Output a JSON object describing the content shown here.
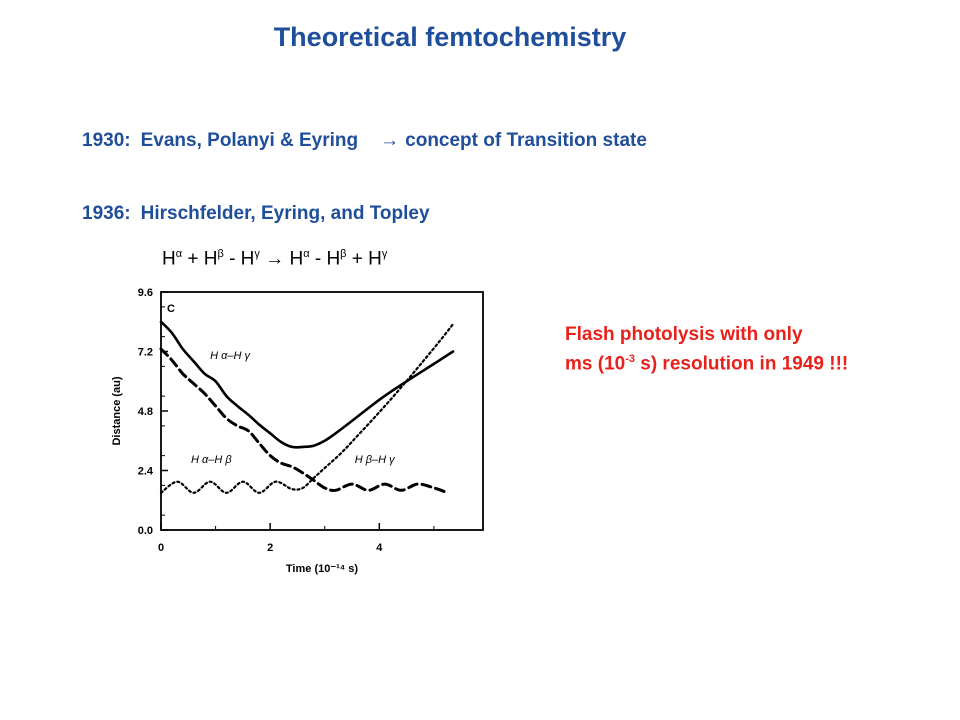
{
  "title": "Theoretical femtochemistry",
  "line1": {
    "year": "1930:",
    "text": "Evans, Polanyi & Eyring",
    "arrow": "→",
    "text2": "concept of Transition state"
  },
  "line2": {
    "year": "1936:",
    "text": "Hirschfelder, Eyring, and Topley"
  },
  "reaction": {
    "t1": "H",
    "s1": "α",
    "t2": " + H",
    "s2": "β",
    "t3": " - H",
    "s3": "γ",
    "arrow": " → ",
    "t4": "H",
    "s4": "α",
    "t5": " - H",
    "s5": "β",
    "t6": " + H",
    "s6": "γ"
  },
  "note": {
    "line1": "Flash photolysis with only",
    "line2_a": "ms (10",
    "line2_sup": "-3",
    "line2_b": " s)  resolution in 1949 !!!"
  },
  "colors": {
    "title": "#1f4e9a",
    "note": "#e8211b"
  },
  "chart_data": {
    "type": "line",
    "panel_label": "C",
    "xlabel": "Time (10⁻¹⁴ s)",
    "ylabel": "Distance (au)",
    "xlim": [
      0,
      5.9
    ],
    "ylim": [
      0,
      9.6
    ],
    "xticks": [
      "0",
      "2",
      "4"
    ],
    "yticks": [
      "0.0",
      "2.4",
      "4.8",
      "7.2",
      "9.6"
    ],
    "curve_labels": [
      {
        "text": "H α–H γ",
        "x": 0.9,
        "y": 6.9
      },
      {
        "text": "H α–H β",
        "x": 0.55,
        "y": 2.7
      },
      {
        "text": "H β–H γ",
        "x": 3.55,
        "y": 2.7
      }
    ],
    "series": [
      {
        "style": "solid",
        "x": [
          0,
          0.2,
          0.4,
          0.6,
          0.8,
          1.0,
          1.2,
          1.4,
          1.6,
          1.8,
          2.0,
          2.2,
          2.4,
          2.6,
          2.8,
          3.0,
          3.2,
          3.5,
          4.0,
          4.5,
          5.0,
          5.35
        ],
        "y": [
          8.4,
          7.95,
          7.3,
          6.8,
          6.3,
          6.0,
          5.4,
          5.0,
          4.65,
          4.25,
          3.9,
          3.55,
          3.35,
          3.35,
          3.4,
          3.6,
          3.9,
          4.4,
          5.25,
          6.0,
          6.7,
          7.2
        ]
      },
      {
        "style": "dashed",
        "x": [
          0,
          0.2,
          0.4,
          0.6,
          0.8,
          1.0,
          1.2,
          1.4,
          1.6,
          1.8,
          2.0,
          2.2,
          2.4,
          2.6,
          2.8,
          3.0,
          3.2,
          3.5,
          3.8,
          4.1,
          4.4,
          4.7,
          5.0,
          5.25
        ],
        "y": [
          7.3,
          6.85,
          6.3,
          5.9,
          5.5,
          5.0,
          4.5,
          4.2,
          4.0,
          3.5,
          3.0,
          2.7,
          2.55,
          2.3,
          2.0,
          1.7,
          1.6,
          1.85,
          1.6,
          1.85,
          1.6,
          1.85,
          1.7,
          1.5
        ]
      },
      {
        "style": "dotted",
        "x": [
          0,
          0.3,
          0.6,
          0.9,
          1.2,
          1.5,
          1.8,
          2.1,
          2.4,
          2.6,
          2.8,
          3.0,
          3.3,
          3.6,
          4.0,
          4.4,
          4.8,
          5.1,
          5.35
        ],
        "y": [
          1.5,
          1.95,
          1.5,
          1.95,
          1.5,
          1.95,
          1.5,
          1.95,
          1.65,
          1.7,
          2.1,
          2.5,
          3.1,
          3.8,
          4.75,
          5.75,
          6.8,
          7.6,
          8.3
        ]
      }
    ]
  }
}
